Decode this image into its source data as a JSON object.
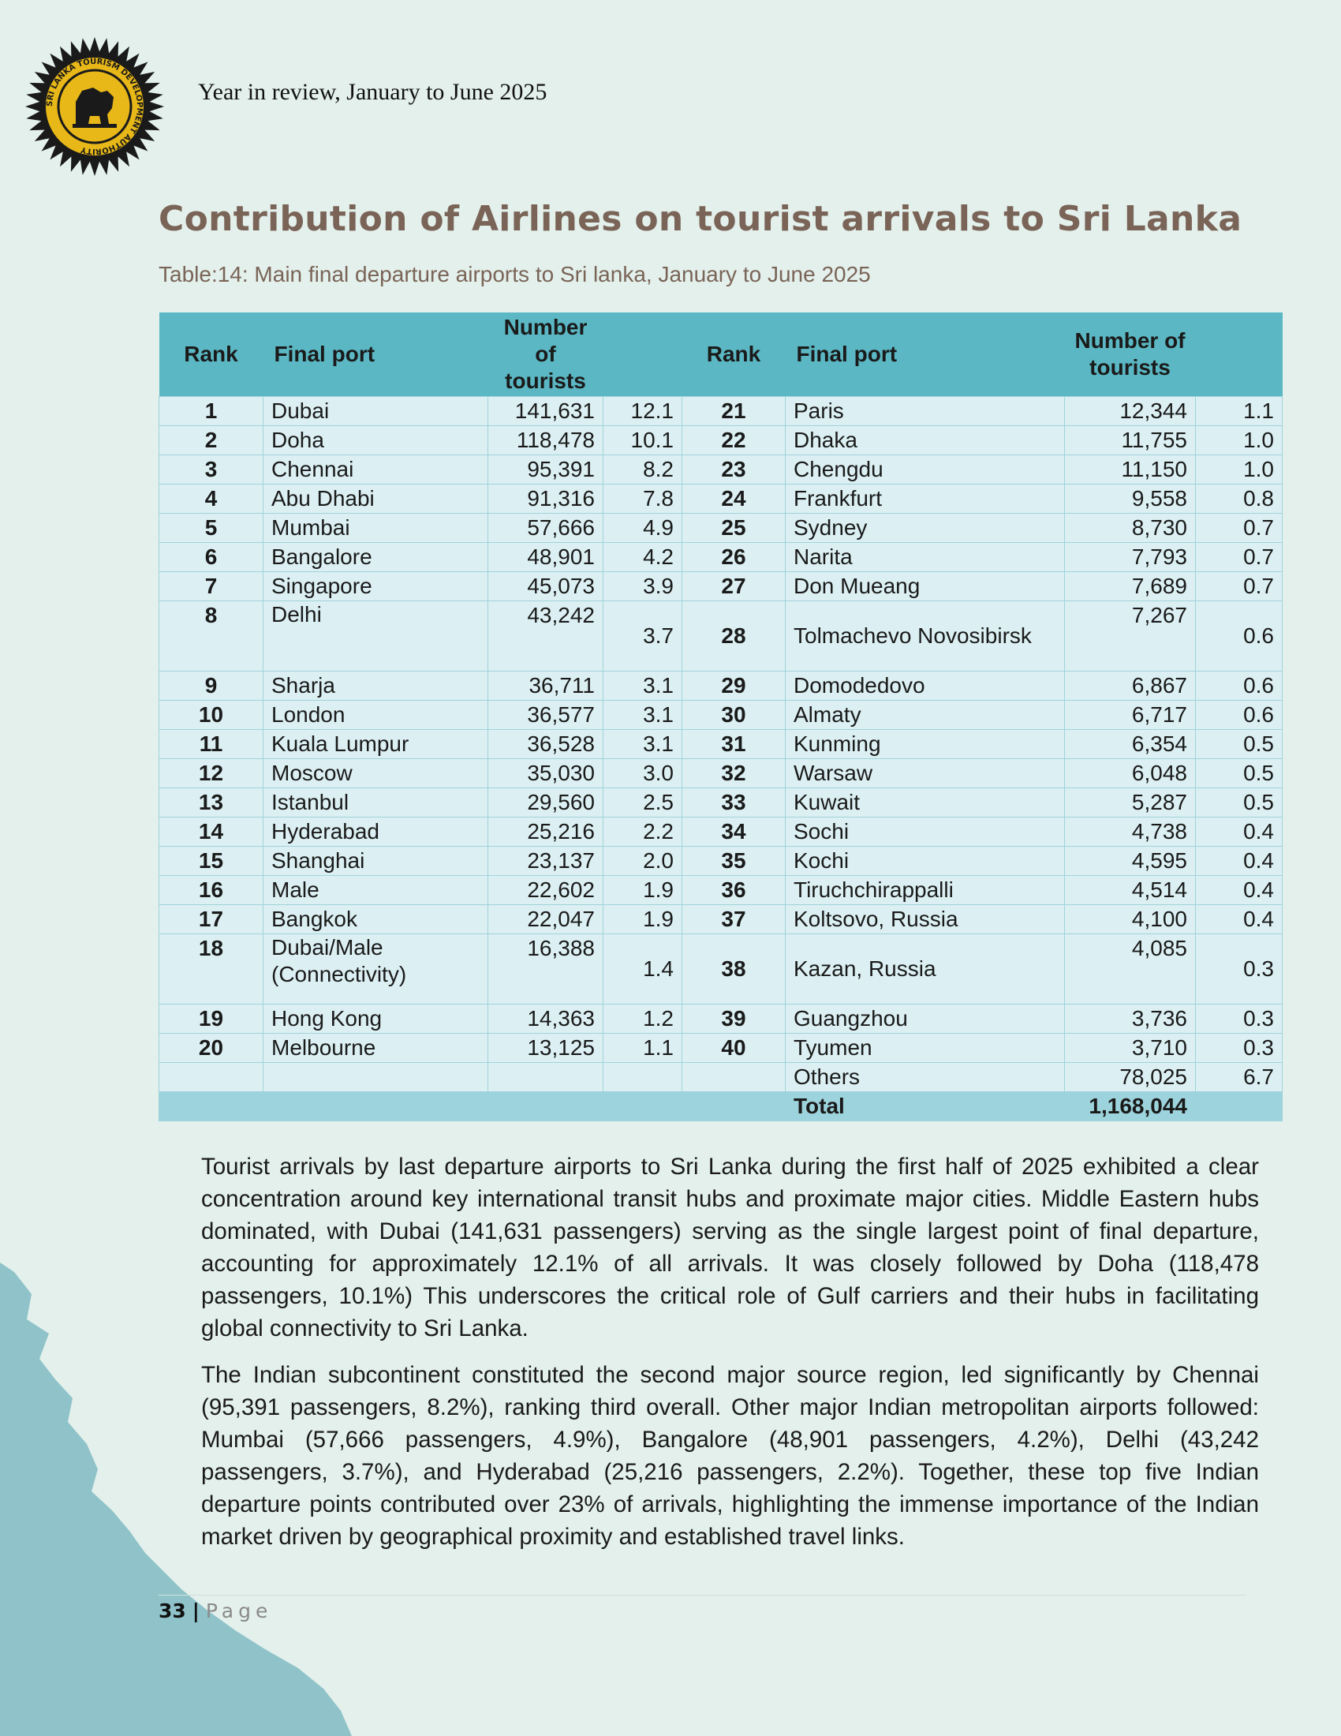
{
  "header": {
    "logo_text": "SRI LANKA TOURISM DEVELOPMENT AUTHORITY",
    "period": "Year in review, January to June 2025"
  },
  "title": "Contribution of Airlines on tourist arrivals to Sri Lanka",
  "caption": "Table:14: Main final departure airports to Sri lanka, January to June 2025",
  "table": {
    "headers": {
      "rank": "Rank",
      "final_port": "Final port",
      "tourists": "Number of tourists"
    },
    "rows": [
      {
        "l_rank": "1",
        "l_port": "Dubai",
        "l_num": "141,631",
        "l_pct": "12.1",
        "r_rank": "21",
        "r_port": "Paris",
        "r_num": "12,344",
        "r_pct": "1.1"
      },
      {
        "l_rank": "2",
        "l_port": "Doha",
        "l_num": "118,478",
        "l_pct": "10.1",
        "r_rank": "22",
        "r_port": "Dhaka",
        "r_num": "11,755",
        "r_pct": "1.0"
      },
      {
        "l_rank": "3",
        "l_port": "Chennai",
        "l_num": "95,391",
        "l_pct": "8.2",
        "r_rank": "23",
        "r_port": "Chengdu",
        "r_num": "11,150",
        "r_pct": "1.0"
      },
      {
        "l_rank": "4",
        "l_port": "Abu Dhabi",
        "l_num": "91,316",
        "l_pct": "7.8",
        "r_rank": "24",
        "r_port": "Frankfurt",
        "r_num": "9,558",
        "r_pct": "0.8"
      },
      {
        "l_rank": "5",
        "l_port": "Mumbai",
        "l_num": "57,666",
        "l_pct": "4.9",
        "r_rank": "25",
        "r_port": "Sydney",
        "r_num": "8,730",
        "r_pct": "0.7"
      },
      {
        "l_rank": "6",
        "l_port": "Bangalore",
        "l_num": "48,901",
        "l_pct": "4.2",
        "r_rank": "26",
        "r_port": "Narita",
        "r_num": "7,793",
        "r_pct": "0.7"
      },
      {
        "l_rank": "7",
        "l_port": "Singapore",
        "l_num": "45,073",
        "l_pct": "3.9",
        "r_rank": "27",
        "r_port": "Don Mueang",
        "r_num": "7,689",
        "r_pct": "0.7"
      },
      {
        "l_rank": "8",
        "l_port": "Delhi",
        "l_num": "43,242",
        "l_pct": "3.7",
        "r_rank": "28",
        "r_port": "Tolmachevo Novosibirsk",
        "r_num": "7,267",
        "r_pct": "0.6",
        "tall": true
      },
      {
        "l_rank": "9",
        "l_port": "Sharja",
        "l_num": "36,711",
        "l_pct": "3.1",
        "r_rank": "29",
        "r_port": "Domodedovo",
        "r_num": "6,867",
        "r_pct": "0.6"
      },
      {
        "l_rank": "10",
        "l_port": "London",
        "l_num": "36,577",
        "l_pct": "3.1",
        "r_rank": "30",
        "r_port": "Almaty",
        "r_num": "6,717",
        "r_pct": "0.6"
      },
      {
        "l_rank": "11",
        "l_port": "Kuala Lumpur",
        "l_num": "36,528",
        "l_pct": "3.1",
        "r_rank": "31",
        "r_port": "Kunming",
        "r_num": "6,354",
        "r_pct": "0.5"
      },
      {
        "l_rank": "12",
        "l_port": "Moscow",
        "l_num": "35,030",
        "l_pct": "3.0",
        "r_rank": "32",
        "r_port": "Warsaw",
        "r_num": "6,048",
        "r_pct": "0.5"
      },
      {
        "l_rank": "13",
        "l_port": "Istanbul",
        "l_num": "29,560",
        "l_pct": "2.5",
        "r_rank": "33",
        "r_port": "Kuwait",
        "r_num": "5,287",
        "r_pct": "0.5"
      },
      {
        "l_rank": "14",
        "l_port": "Hyderabad",
        "l_num": "25,216",
        "l_pct": "2.2",
        "r_rank": "34",
        "r_port": "Sochi",
        "r_num": "4,738",
        "r_pct": "0.4"
      },
      {
        "l_rank": "15",
        "l_port": "Shanghai",
        "l_num": "23,137",
        "l_pct": "2.0",
        "r_rank": "35",
        "r_port": "Kochi",
        "r_num": "4,595",
        "r_pct": "0.4"
      },
      {
        "l_rank": "16",
        "l_port": "Male",
        "l_num": "22,602",
        "l_pct": "1.9",
        "r_rank": "36",
        "r_port": "Tiruchchirappalli",
        "r_num": "4,514",
        "r_pct": "0.4"
      },
      {
        "l_rank": "17",
        "l_port": "Bangkok",
        "l_num": "22,047",
        "l_pct": "1.9",
        "r_rank": "37",
        "r_port": "Koltsovo, Russia",
        "r_num": "4,100",
        "r_pct": "0.4"
      },
      {
        "l_rank": "18",
        "l_port": "Dubai/Male (Connectivity)",
        "l_num": "16,388",
        "l_pct": "1.4",
        "r_rank": "38",
        "r_port": "Kazan, Russia",
        "r_num": "4,085",
        "r_pct": "0.3",
        "tall": true
      },
      {
        "l_rank": "19",
        "l_port": "Hong Kong",
        "l_num": "14,363",
        "l_pct": "1.2",
        "r_rank": "39",
        "r_port": "Guangzhou",
        "r_num": "3,736",
        "r_pct": "0.3"
      },
      {
        "l_rank": "20",
        "l_port": "Melbourne",
        "l_num": "13,125",
        "l_pct": "1.1",
        "r_rank": "40",
        "r_port": "Tyumen",
        "r_num": "3,710",
        "r_pct": "0.3"
      },
      {
        "l_rank": "",
        "l_port": "",
        "l_num": "",
        "l_pct": "",
        "r_rank": "",
        "r_port": "Others",
        "r_num": "78,025",
        "r_pct": "6.7"
      }
    ],
    "total": {
      "label": "Total",
      "value": "1,168,044"
    }
  },
  "paragraphs": [
    "Tourist arrivals by last departure airports to Sri Lanka during the first half of 2025 exhibited a clear concentration around key international transit hubs and proximate major cities. Middle Eastern hubs dominated, with Dubai (141,631 passengers) serving as the single largest point of final departure, accounting for approximately 12.1% of all arrivals. It was closely followed by Doha (118,478 passengers, 10.1%) This underscores the critical role of Gulf carriers and their hubs in facilitating global connectivity to Sri Lanka.",
    "The Indian subcontinent constituted the second major source region, led significantly by Chennai (95,391 passengers, 8.2%), ranking third overall. Other major Indian metropolitan airports followed: Mumbai (57,666 passengers, 4.9%), Bangalore (48,901 passengers, 4.2%), Delhi (43,242 passengers, 3.7%), and Hyderabad (25,216 passengers, 2.2%). Together, these top five Indian departure points contributed over 23% of arrivals, highlighting the immense importance of the Indian market driven by geographical proximity and established travel links."
  ],
  "footer": {
    "page_number": "33",
    "separator": "|",
    "page_label": "Page"
  },
  "colors": {
    "background": "#e3f0ec",
    "header_band": "#5ab7c3",
    "row_fill": "#dcf0f3",
    "total_band": "#9dd3dc",
    "title": "#7a6457",
    "coast": "#8fc3c9",
    "seal_gold": "#e8b818"
  }
}
